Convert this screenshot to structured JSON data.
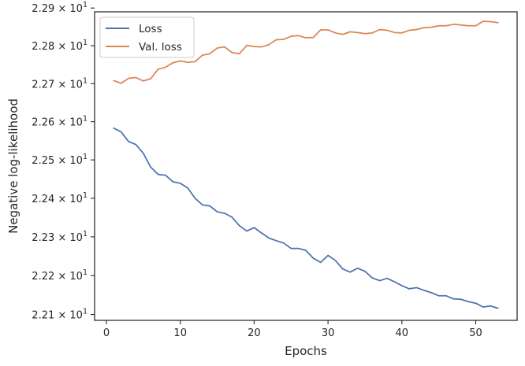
{
  "chart_data": {
    "type": "line",
    "xlabel": "Epochs",
    "ylabel": "Negative log-likelihood",
    "xlim": [
      -1.6,
      55.6
    ],
    "ylim": [
      22.085,
      22.89
    ],
    "y_scale": "log",
    "grid": false,
    "legend_position": "top-left",
    "x_ticks": [
      0,
      10,
      20,
      30,
      40,
      50
    ],
    "x_tick_labels": [
      "0",
      "10",
      "20",
      "30",
      "40",
      "50"
    ],
    "y_ticks": [
      22.1,
      22.2,
      22.3,
      22.4,
      22.5,
      22.6,
      22.7,
      22.8,
      22.9
    ],
    "y_tick_labels": [
      {
        "mantissa": "2.21",
        "exponent": "1"
      },
      {
        "mantissa": "2.22",
        "exponent": "1"
      },
      {
        "mantissa": "2.23",
        "exponent": "1"
      },
      {
        "mantissa": "2.24",
        "exponent": "1"
      },
      {
        "mantissa": "2.25",
        "exponent": "1"
      },
      {
        "mantissa": "2.26",
        "exponent": "1"
      },
      {
        "mantissa": "2.27",
        "exponent": "1"
      },
      {
        "mantissa": "2.28",
        "exponent": "1"
      },
      {
        "mantissa": "2.29",
        "exponent": "1"
      }
    ],
    "x": [
      1,
      2,
      3,
      4,
      5,
      6,
      7,
      8,
      9,
      10,
      11,
      12,
      13,
      14,
      15,
      16,
      17,
      18,
      19,
      20,
      21,
      22,
      23,
      24,
      25,
      26,
      27,
      28,
      29,
      30,
      31,
      32,
      33,
      34,
      35,
      36,
      37,
      38,
      39,
      40,
      41,
      42,
      43,
      44,
      45,
      46,
      47,
      48,
      49,
      50,
      51,
      52,
      53
    ],
    "series": [
      {
        "name": "Loss",
        "color": "#4c72b0",
        "values": [
          22.583,
          22.573,
          22.548,
          22.54,
          22.517,
          22.481,
          22.462,
          22.46,
          22.443,
          22.439,
          22.427,
          22.4,
          22.383,
          22.38,
          22.365,
          22.361,
          22.351,
          22.329,
          22.315,
          22.324,
          22.31,
          22.297,
          22.29,
          22.284,
          22.27,
          22.27,
          22.265,
          22.245,
          22.234,
          22.252,
          22.239,
          22.217,
          22.209,
          22.219,
          22.211,
          22.194,
          22.187,
          22.193,
          22.184,
          22.174,
          22.166,
          22.169,
          22.162,
          22.156,
          22.148,
          22.148,
          22.14,
          22.139,
          22.133,
          22.129,
          22.119,
          22.122,
          22.116
        ]
      },
      {
        "name": "Val. loss",
        "color": "#dd8452",
        "values": [
          22.708,
          22.701,
          22.714,
          22.716,
          22.707,
          22.713,
          22.738,
          22.743,
          22.755,
          22.76,
          22.756,
          22.758,
          22.775,
          22.779,
          22.794,
          22.797,
          22.782,
          22.779,
          22.801,
          22.798,
          22.797,
          22.803,
          22.816,
          22.817,
          22.825,
          22.827,
          22.821,
          22.822,
          22.842,
          22.842,
          22.834,
          22.83,
          22.837,
          22.835,
          22.832,
          22.834,
          22.843,
          22.841,
          22.835,
          22.834,
          22.841,
          22.843,
          22.848,
          22.849,
          22.853,
          22.853,
          22.857,
          22.855,
          22.853,
          22.853,
          22.865,
          22.864,
          22.861
        ]
      }
    ]
  }
}
